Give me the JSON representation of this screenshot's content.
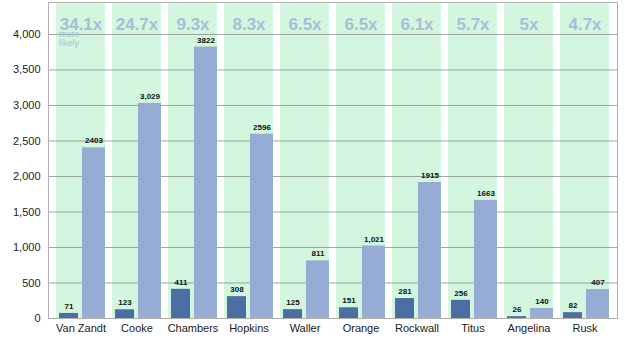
{
  "chart_data": {
    "type": "bar",
    "categories": [
      "Van Zandt",
      "Cooke",
      "Chambers",
      "Hopkins",
      "Waller",
      "Orange",
      "Rockwall",
      "Titus",
      "Angelina",
      "Rusk"
    ],
    "series": [
      {
        "color": "#4a6fa5",
        "values": [
          71,
          123,
          411,
          308,
          125,
          151,
          281,
          256,
          26,
          82
        ]
      },
      {
        "color": "#96acd4",
        "values": [
          2403,
          3029,
          3822,
          2596,
          811,
          1021,
          1915,
          1663,
          140,
          407
        ],
        "value_labels": [
          "2403",
          "3,029",
          "3822",
          "2596",
          "811",
          "1,021",
          "1915",
          "1663",
          "140",
          "407"
        ]
      }
    ],
    "ylim": [
      0,
      4450
    ],
    "yticks": [
      0,
      500,
      1000,
      1500,
      2000,
      2500,
      3000,
      3500,
      4000
    ],
    "grid": true,
    "data_labels": true,
    "annotations": [
      {
        "category": "Van Zandt",
        "text": "34.1x",
        "subtext": "more likely"
      },
      {
        "category": "Cooke",
        "text": "24.7x"
      },
      {
        "category": "Chambers",
        "text": "9.3x"
      },
      {
        "category": "Hopkins",
        "text": "8.3x"
      },
      {
        "category": "Waller",
        "text": "6.5x"
      },
      {
        "category": "Orange",
        "text": "6.5x"
      },
      {
        "category": "Rockwall",
        "text": "6.1x"
      },
      {
        "category": "Titus",
        "text": "5.7x"
      },
      {
        "category": "Angelina",
        "text": "5x"
      },
      {
        "category": "Rusk",
        "text": "4.7x"
      }
    ]
  }
}
